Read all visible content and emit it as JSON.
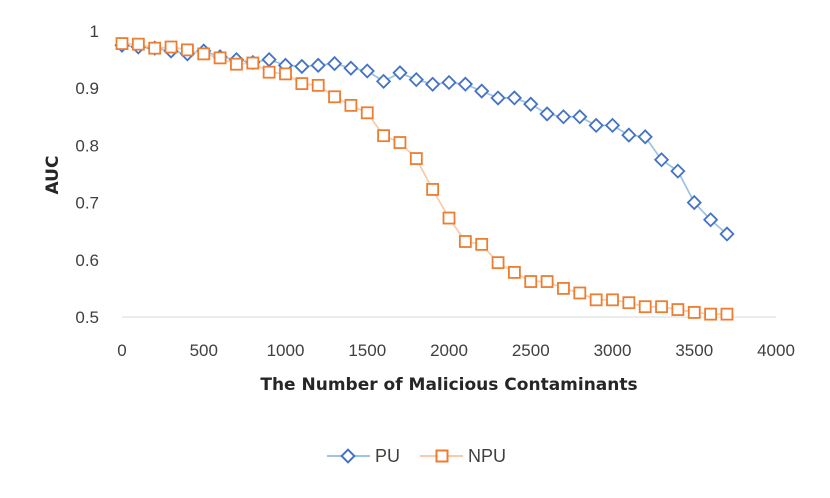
{
  "chart_data": {
    "type": "line",
    "title": "",
    "xlabel": "The Number of Malicious Contaminants",
    "ylabel": "AUC",
    "xlim": [
      0,
      4000
    ],
    "ylim": [
      0.5,
      1
    ],
    "x_ticks": [
      0,
      500,
      1000,
      1500,
      2000,
      2500,
      3000,
      3500,
      4000
    ],
    "y_ticks": [
      0.5,
      0.6,
      0.7,
      0.8,
      0.9,
      1
    ],
    "y_tick_labels": [
      "0.5",
      "0.6",
      "0.7",
      "0.8",
      "0.9",
      "1"
    ],
    "grid": false,
    "legend_position": "bottom",
    "x": [
      0,
      100,
      200,
      300,
      400,
      500,
      600,
      700,
      800,
      900,
      1000,
      1100,
      1200,
      1300,
      1400,
      1500,
      1600,
      1700,
      1800,
      1900,
      2000,
      2100,
      2200,
      2300,
      2400,
      2500,
      2600,
      2700,
      2800,
      2900,
      3000,
      3100,
      3200,
      3300,
      3400,
      3500,
      3600,
      3700
    ],
    "series": [
      {
        "name": "PU",
        "marker": "diamond",
        "color": "#4472C4",
        "line_color": "#9DC3E6",
        "values": [
          0.975,
          0.972,
          0.97,
          0.965,
          0.96,
          0.965,
          0.955,
          0.95,
          0.945,
          0.95,
          0.94,
          0.938,
          0.94,
          0.943,
          0.935,
          0.93,
          0.912,
          0.927,
          0.915,
          0.907,
          0.91,
          0.907,
          0.895,
          0.883,
          0.883,
          0.872,
          0.855,
          0.85,
          0.85,
          0.835,
          0.835,
          0.818,
          0.815,
          0.775,
          0.755,
          0.7,
          0.67,
          0.645
        ]
      },
      {
        "name": "NPU",
        "marker": "square",
        "color": "#ED7D31",
        "line_color": "#F8CBAD",
        "values": [
          0.978,
          0.977,
          0.97,
          0.972,
          0.967,
          0.96,
          0.953,
          0.942,
          0.944,
          0.928,
          0.925,
          0.908,
          0.905,
          0.885,
          0.87,
          0.857,
          0.817,
          0.805,
          0.777,
          0.723,
          0.673,
          0.632,
          0.627,
          0.595,
          0.578,
          0.562,
          0.562,
          0.55,
          0.542,
          0.53,
          0.53,
          0.525,
          0.518,
          0.518,
          0.513,
          0.508,
          0.505,
          0.505
        ]
      }
    ]
  }
}
